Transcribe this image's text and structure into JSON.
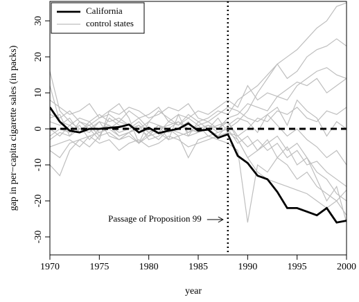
{
  "chart_data": {
    "type": "line",
    "xlabel": "year",
    "ylabel": "gap in per−capita cigarette sales (in packs)",
    "x": [
      1970,
      1971,
      1972,
      1973,
      1974,
      1975,
      1976,
      1977,
      1978,
      1979,
      1980,
      1981,
      1982,
      1983,
      1984,
      1985,
      1986,
      1987,
      1988,
      1989,
      1990,
      1991,
      1992,
      1993,
      1994,
      1995,
      1996,
      1997,
      1998,
      1999,
      2000
    ],
    "xlim": [
      1970,
      2000
    ],
    "xticks": [
      1970,
      1975,
      1980,
      1985,
      1990,
      1995,
      2000
    ],
    "ylim": [
      -35,
      35.4
    ],
    "yticks": [
      -30,
      -20,
      -10,
      0,
      10,
      20,
      30
    ],
    "hline": 0,
    "vline": 1988,
    "annotation": "Passage of Proposition 99",
    "legend": "top-left",
    "series": [
      {
        "name": "California",
        "color": "#000000",
        "values": [
          6,
          2,
          -0.5,
          -1,
          0,
          0,
          0.3,
          0.5,
          1.2,
          -1,
          0.3,
          -1.2,
          -0.5,
          0,
          1.5,
          -0.5,
          -0.2,
          -2.5,
          -1.5,
          -7.5,
          -9.5,
          -13,
          -14,
          -17.5,
          -22,
          -22,
          -23,
          -24,
          -22,
          -26,
          -25.5
        ]
      },
      {
        "name": "control states",
        "color": "#bebebe",
        "lines": [
          [
            16,
            5,
            2,
            0,
            1,
            -2,
            3,
            1,
            0,
            2,
            -1,
            1,
            0,
            2,
            -1,
            0,
            1,
            -1,
            0,
            2,
            5,
            10,
            14,
            18,
            20,
            22,
            25,
            28,
            30,
            34,
            35
          ],
          [
            -10,
            -13,
            -6,
            -3,
            -2,
            -1,
            0,
            -2,
            -1,
            1,
            -3,
            -2,
            0,
            -1,
            -2,
            -1,
            0,
            1,
            2,
            -3,
            -8,
            -12,
            -14,
            -15,
            -16,
            -17,
            -18,
            -20,
            -22,
            -20,
            -24
          ],
          [
            2,
            1,
            3,
            -1,
            2,
            4,
            2,
            3,
            1,
            0,
            2,
            5,
            3,
            1,
            4,
            2,
            3,
            5,
            4,
            8,
            10,
            12,
            15,
            18,
            14,
            16,
            20,
            22,
            23,
            25,
            23
          ],
          [
            -3,
            -1,
            -2,
            0,
            -1,
            2,
            -2,
            -3,
            -1,
            -4,
            -2,
            -1,
            -3,
            -2,
            -8,
            -3,
            -2,
            -3,
            -4,
            -6,
            -26,
            -10,
            -12,
            -8,
            -10,
            -14,
            -12,
            -16,
            -18,
            -20,
            -17
          ],
          [
            4,
            3,
            5,
            2,
            1,
            3,
            4,
            2,
            5,
            3,
            4,
            6,
            2,
            4,
            3,
            5,
            4,
            6,
            8,
            6,
            12,
            8,
            10,
            9,
            11,
            13,
            12,
            14,
            10,
            12,
            14
          ],
          [
            0,
            -2,
            1,
            -1,
            0,
            2,
            1,
            -1,
            0,
            1,
            -1,
            0,
            1,
            2,
            0,
            -1,
            1,
            0,
            2,
            -2,
            -5,
            -3,
            -6,
            -4,
            -8,
            -6,
            -10,
            -9,
            -12,
            -14,
            -16
          ],
          [
            -5,
            -4,
            -3,
            -5,
            -2,
            -4,
            -3,
            -6,
            -4,
            -3,
            -5,
            -4,
            -2,
            -3,
            -5,
            -4,
            -3,
            -2,
            -1,
            -2,
            0,
            3,
            2,
            5,
            4,
            6,
            3,
            2,
            5,
            4,
            6
          ],
          [
            8,
            6,
            4,
            5,
            7,
            3,
            5,
            4,
            6,
            5,
            3,
            4,
            6,
            5,
            7,
            3,
            2,
            4,
            6,
            5,
            3,
            2,
            4,
            1,
            -2,
            0,
            -3,
            -5,
            -8,
            -6,
            -10
          ],
          [
            -2,
            0,
            -1,
            1,
            -3,
            0,
            1,
            -2,
            -1,
            0,
            -2,
            1,
            -1,
            0,
            2,
            -1,
            0,
            -2,
            1,
            3,
            2,
            -1,
            4,
            6,
            1,
            8,
            5,
            3,
            -2,
            2,
            0
          ],
          [
            3,
            4,
            -2,
            2,
            0,
            -3,
            5,
            7,
            3,
            -4,
            2,
            1,
            -3,
            4,
            -2,
            2,
            0,
            3,
            -1,
            -3,
            -8,
            -6,
            -4,
            -2,
            -6,
            -4,
            -8,
            -12,
            -14,
            -18,
            -20
          ],
          [
            -6,
            -8,
            -4,
            -3,
            -5,
            -2,
            -1,
            -3,
            -2,
            -4,
            -1,
            -3,
            0,
            -2,
            -1,
            1,
            -2,
            -1,
            0,
            -4,
            -2,
            -6,
            -3,
            -8,
            -5,
            -10,
            -8,
            -14,
            -20,
            -16,
            -26
          ],
          [
            12,
            2,
            1,
            3,
            2,
            -1,
            0,
            2,
            1,
            3,
            0,
            -1,
            2,
            1,
            3,
            1,
            2,
            0,
            3,
            4,
            7,
            6,
            5,
            9,
            8,
            12,
            14,
            16,
            17,
            15,
            14
          ]
        ]
      }
    ]
  }
}
